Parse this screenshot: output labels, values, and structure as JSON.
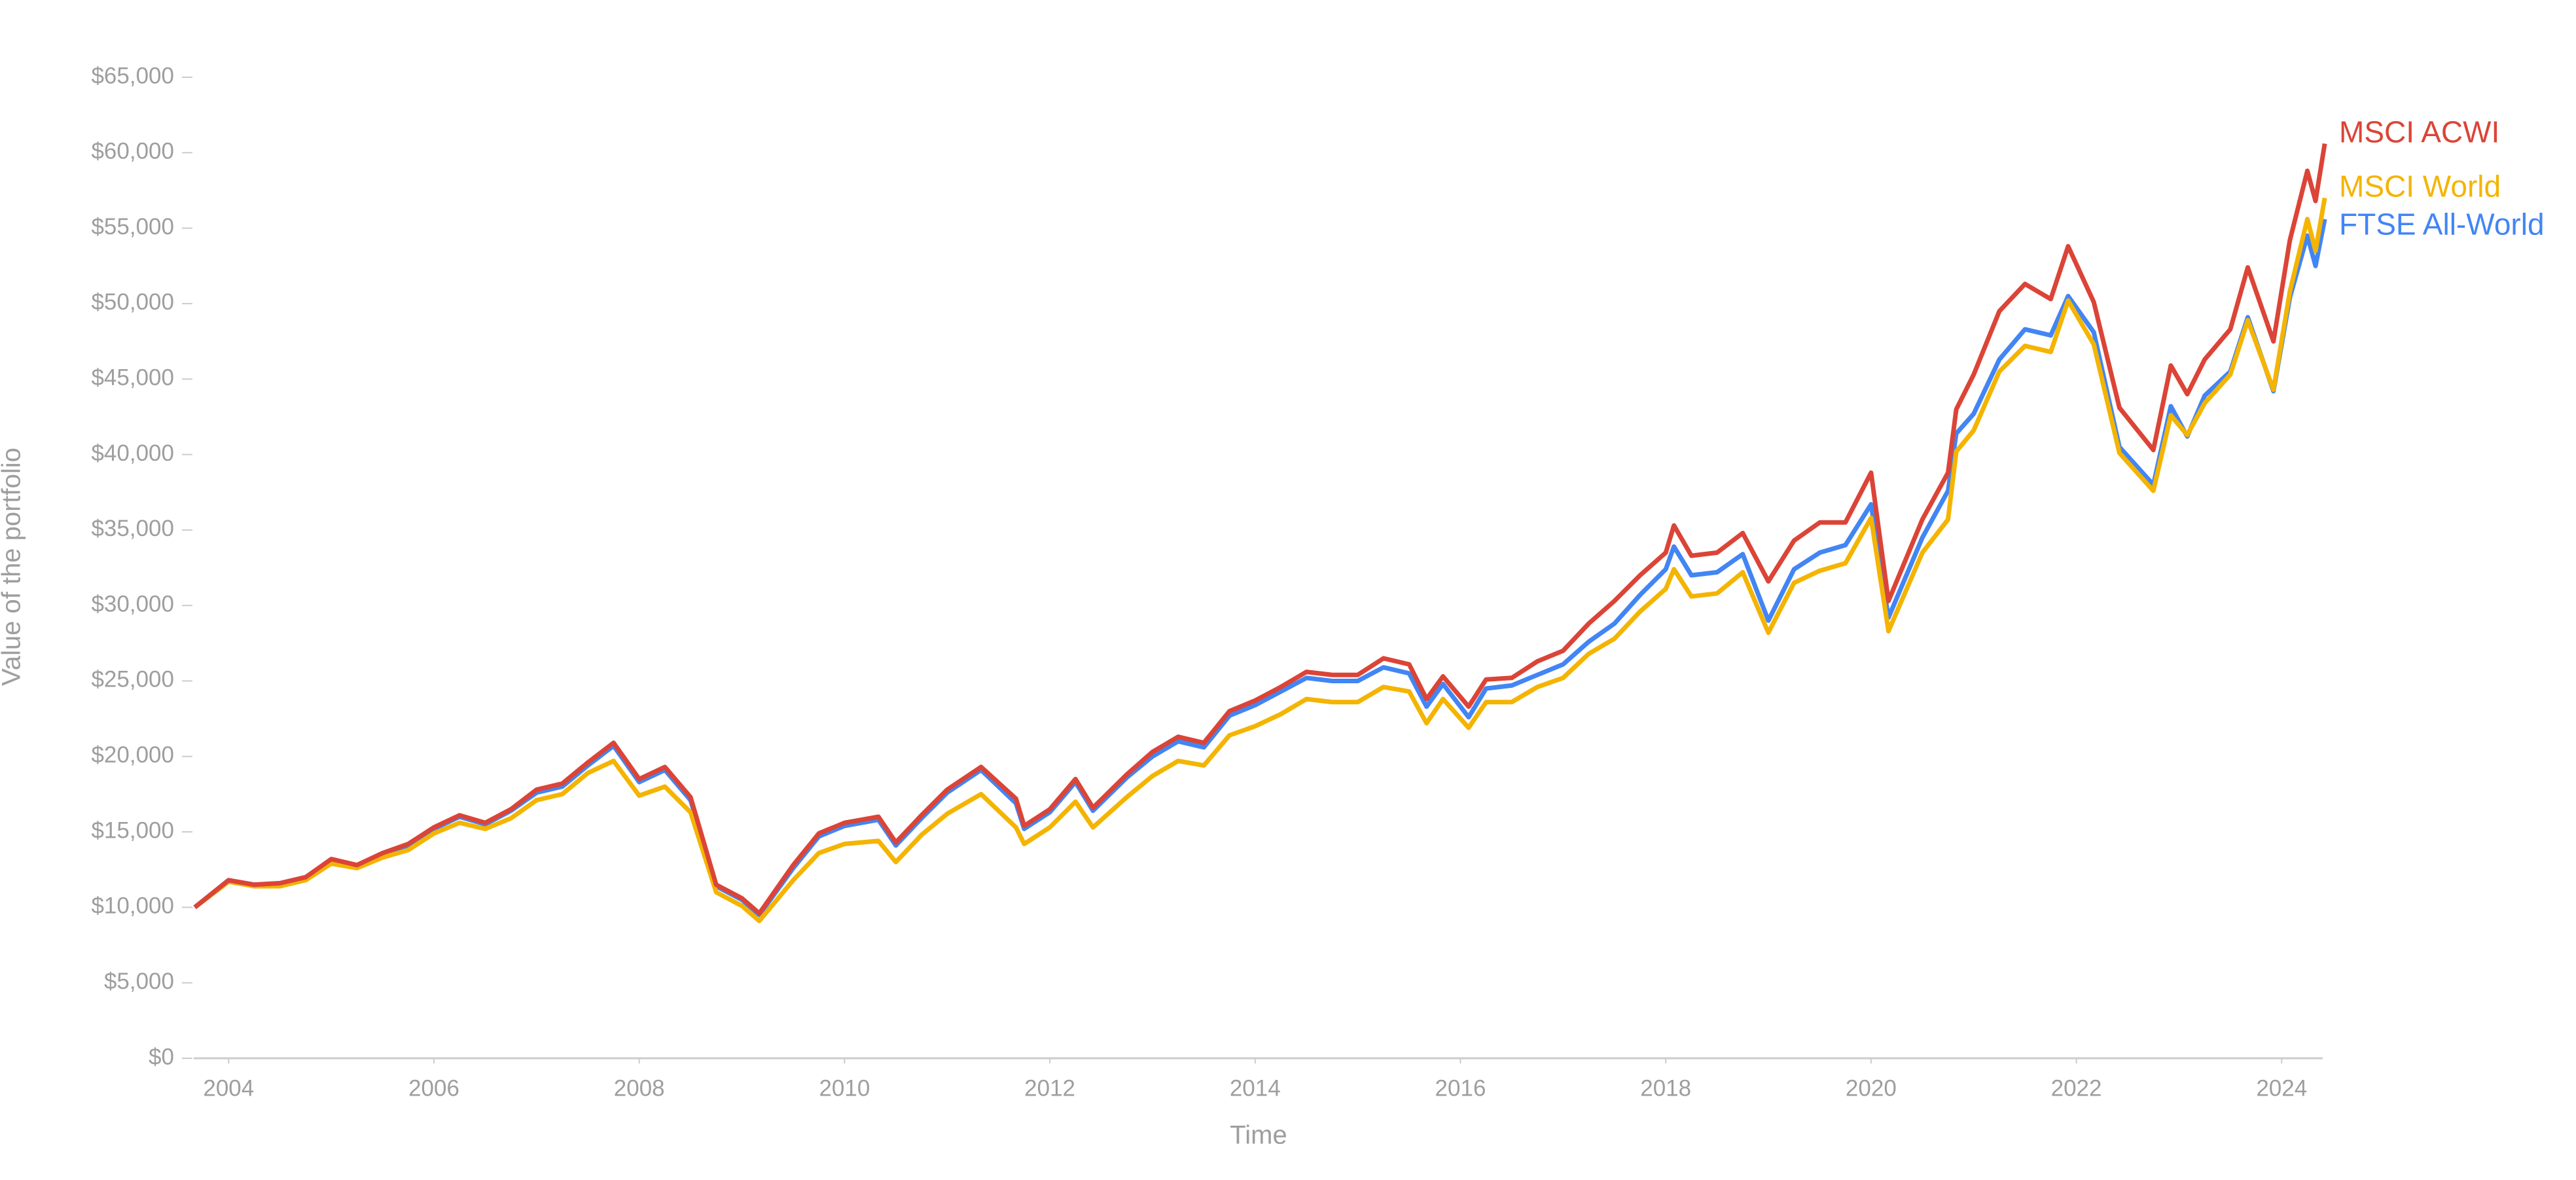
{
  "chart_data": {
    "type": "line",
    "xlabel": "Time",
    "ylabel": "Value of the portfolio",
    "x": [
      2003.67,
      2004.0,
      2004.25,
      2004.5,
      2004.75,
      2005.0,
      2005.25,
      2005.5,
      2005.75,
      2006.0,
      2006.25,
      2006.5,
      2006.75,
      2007.0,
      2007.25,
      2007.5,
      2007.75,
      2008.0,
      2008.25,
      2008.5,
      2008.75,
      2009.0,
      2009.17,
      2009.5,
      2009.75,
      2010.0,
      2010.33,
      2010.5,
      2010.75,
      2011.0,
      2011.33,
      2011.67,
      2011.75,
      2012.0,
      2012.25,
      2012.42,
      2012.75,
      2013.0,
      2013.25,
      2013.5,
      2013.75,
      2014.0,
      2014.25,
      2014.5,
      2014.75,
      2015.0,
      2015.25,
      2015.5,
      2015.67,
      2015.83,
      2016.08,
      2016.25,
      2016.5,
      2016.75,
      2017.0,
      2017.25,
      2017.5,
      2017.75,
      2018.0,
      2018.08,
      2018.25,
      2018.5,
      2018.75,
      2019.0,
      2019.25,
      2019.5,
      2019.75,
      2020.0,
      2020.17,
      2020.5,
      2020.75,
      2020.83,
      2021.0,
      2021.25,
      2021.5,
      2021.75,
      2021.92,
      2022.17,
      2022.42,
      2022.75,
      2022.92,
      2023.08,
      2023.25,
      2023.5,
      2023.67,
      2023.92,
      2024.08,
      2024.25,
      2024.33,
      2024.42
    ],
    "series": [
      {
        "name": "MSCI ACWI",
        "color": "#db4437",
        "values": [
          10000,
          11800,
          11500,
          11600,
          12000,
          13200,
          12800,
          13600,
          14200,
          15300,
          16100,
          15600,
          16500,
          17800,
          18200,
          19600,
          20900,
          18500,
          19300,
          17300,
          11500,
          10600,
          9600,
          12800,
          14900,
          15600,
          16000,
          14300,
          16100,
          17800,
          19300,
          17200,
          15400,
          16500,
          18500,
          16600,
          18800,
          20300,
          21300,
          20900,
          23000,
          23700,
          24600,
          25600,
          25400,
          25400,
          26500,
          26100,
          23800,
          25300,
          23300,
          25100,
          25200,
          26300,
          27000,
          28800,
          30300,
          32000,
          33500,
          35300,
          33300,
          33500,
          34800,
          31600,
          34300,
          35500,
          35500,
          38800,
          30300,
          35700,
          38800,
          43000,
          45300,
          49500,
          51300,
          50300,
          53800,
          50100,
          43100,
          40300,
          45900,
          44000,
          46300,
          48300,
          52400,
          47500,
          54200,
          58800,
          56800,
          60600
        ]
      },
      {
        "name": "MSCI World",
        "color": "#f4b400",
        "values": [
          10000,
          11700,
          11400,
          11400,
          11800,
          12900,
          12600,
          13300,
          13800,
          14900,
          15600,
          15200,
          15900,
          17100,
          17500,
          18900,
          19700,
          17400,
          18000,
          16300,
          11000,
          10100,
          9100,
          11800,
          13600,
          14200,
          14400,
          13000,
          14800,
          16200,
          17500,
          15300,
          14200,
          15300,
          17000,
          15300,
          17300,
          18700,
          19700,
          19400,
          21400,
          22000,
          22800,
          23800,
          23600,
          23600,
          24600,
          24300,
          22200,
          23800,
          21900,
          23600,
          23600,
          24600,
          25200,
          26800,
          27800,
          29600,
          31100,
          32400,
          30600,
          30800,
          32200,
          28200,
          31500,
          32300,
          32800,
          35800,
          28300,
          33500,
          35700,
          40200,
          41600,
          45500,
          47200,
          46800,
          50200,
          47300,
          40100,
          37600,
          42600,
          41300,
          43400,
          45300,
          48900,
          44300,
          50800,
          55600,
          53500,
          57000
        ]
      },
      {
        "name": "FTSE All-World",
        "color": "#4285f4",
        "values": [
          10000,
          11800,
          11500,
          11600,
          12000,
          13100,
          12800,
          13500,
          14100,
          15200,
          16000,
          15500,
          16400,
          17600,
          18000,
          19400,
          20700,
          18300,
          19100,
          17100,
          11400,
          10500,
          9500,
          12600,
          14700,
          15400,
          15800,
          14100,
          15900,
          17600,
          19100,
          16900,
          15200,
          16300,
          18300,
          16400,
          18600,
          20000,
          21000,
          20600,
          22700,
          23400,
          24300,
          25200,
          25000,
          25000,
          25900,
          25500,
          23300,
          24800,
          22600,
          24500,
          24700,
          25400,
          26100,
          27600,
          28800,
          30700,
          32400,
          33900,
          32000,
          32200,
          33400,
          29000,
          32400,
          33500,
          34000,
          36700,
          29200,
          34500,
          37600,
          41400,
          42700,
          46300,
          48300,
          47900,
          50500,
          48100,
          40500,
          38000,
          43200,
          41200,
          43900,
          45500,
          49100,
          44200,
          50400,
          54500,
          52500,
          55600
        ]
      }
    ],
    "xlim": [
      2003.66,
      2024.4
    ],
    "xticks": [
      2004,
      2006,
      2008,
      2010,
      2012,
      2014,
      2016,
      2018,
      2020,
      2022,
      2024
    ],
    "ylim": [
      0,
      65000
    ],
    "yticks": [
      {
        "value": 0,
        "label": "$0"
      },
      {
        "value": 5000,
        "label": "$5,000"
      },
      {
        "value": 10000,
        "label": "$10,000"
      },
      {
        "value": 15000,
        "label": "$15,000"
      },
      {
        "value": 20000,
        "label": "$20,000"
      },
      {
        "value": 25000,
        "label": "$25,000"
      },
      {
        "value": 30000,
        "label": "$30,000"
      },
      {
        "value": 35000,
        "label": "$35,000"
      },
      {
        "value": 40000,
        "label": "$40,000"
      },
      {
        "value": 45000,
        "label": "$45,000"
      },
      {
        "value": 50000,
        "label": "$50,000"
      },
      {
        "value": 55000,
        "label": "$55,000"
      },
      {
        "value": 60000,
        "label": "$60,000"
      },
      {
        "value": 65000,
        "label": "$65,000"
      }
    ],
    "grid": false
  }
}
